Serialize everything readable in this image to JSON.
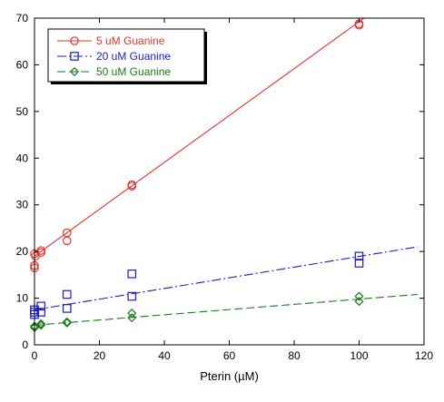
{
  "chart_data": {
    "type": "scatter",
    "title": "",
    "xlabel": "Pterin (µM)",
    "ylabel": "",
    "xlim": [
      0,
      120
    ],
    "ylim": [
      0,
      70
    ],
    "xticks": [
      0,
      20,
      40,
      60,
      80,
      100,
      120
    ],
    "yticks": [
      0,
      10,
      20,
      30,
      40,
      50,
      60,
      70
    ],
    "grid": false,
    "legend_position": "top-left",
    "series": [
      {
        "name": "5 uM Guanine",
        "color": "#e8342e",
        "marker": "circle",
        "line_style": "solid",
        "points": [
          [
            0,
            19.5
          ],
          [
            0,
            17
          ],
          [
            0,
            16.5
          ],
          [
            0.3,
            19
          ],
          [
            2,
            20.2
          ],
          [
            2,
            19.8
          ],
          [
            10,
            24
          ],
          [
            10,
            22.3
          ],
          [
            30,
            34.3
          ],
          [
            30,
            34
          ],
          [
            100,
            68.8
          ],
          [
            100,
            68.5
          ]
        ],
        "fit": [
          [
            0,
            19
          ],
          [
            103.5,
            71
          ]
        ]
      },
      {
        "name": "20 uM Guanine",
        "color": "#1a1ad0",
        "marker": "square",
        "line_style": "dash-dot",
        "points": [
          [
            0,
            7.5
          ],
          [
            0,
            7
          ],
          [
            0,
            6.5
          ],
          [
            2,
            8.3
          ],
          [
            2,
            7
          ],
          [
            10,
            10.8
          ],
          [
            10,
            7.8
          ],
          [
            30,
            15.2
          ],
          [
            30,
            10.4
          ],
          [
            100,
            19
          ],
          [
            100,
            17.5
          ]
        ],
        "fit": [
          [
            0,
            7.5
          ],
          [
            118,
            21
          ]
        ]
      },
      {
        "name": "50 uM Guanine",
        "color": "#1a7a1a",
        "marker": "diamond",
        "line_style": "dashed",
        "points": [
          [
            0,
            4
          ],
          [
            0,
            3.7
          ],
          [
            2,
            4.5
          ],
          [
            2,
            4.2
          ],
          [
            10,
            4.9
          ],
          [
            10,
            4.7
          ],
          [
            30,
            6.8
          ],
          [
            30,
            5.8
          ],
          [
            100,
            10.4
          ],
          [
            100,
            9.3
          ]
        ],
        "fit": [
          [
            0,
            4.2
          ],
          [
            118,
            10.8
          ]
        ]
      }
    ]
  }
}
